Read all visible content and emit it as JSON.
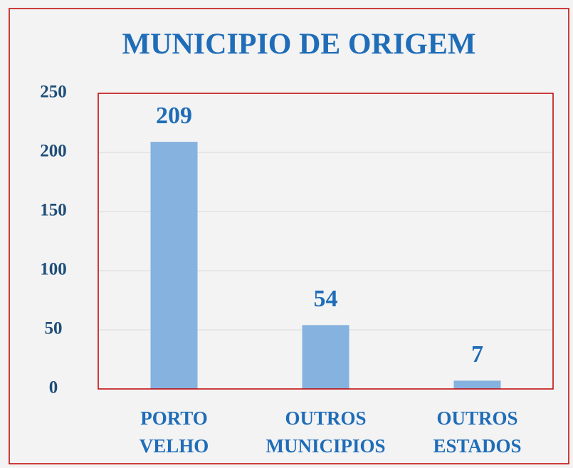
{
  "chart_data": {
    "type": "bar",
    "title": "MUNICIPIO DE ORIGEM",
    "categories": [
      "PORTO VELHO",
      "OUTROS MUNICIPIOS",
      "OUTROS ESTADOS"
    ],
    "values": [
      209,
      54,
      7
    ],
    "color": "#86b2df",
    "ylim": [
      0,
      250
    ],
    "yticks": [
      0,
      50,
      100,
      150,
      200,
      250
    ],
    "grid": true
  }
}
